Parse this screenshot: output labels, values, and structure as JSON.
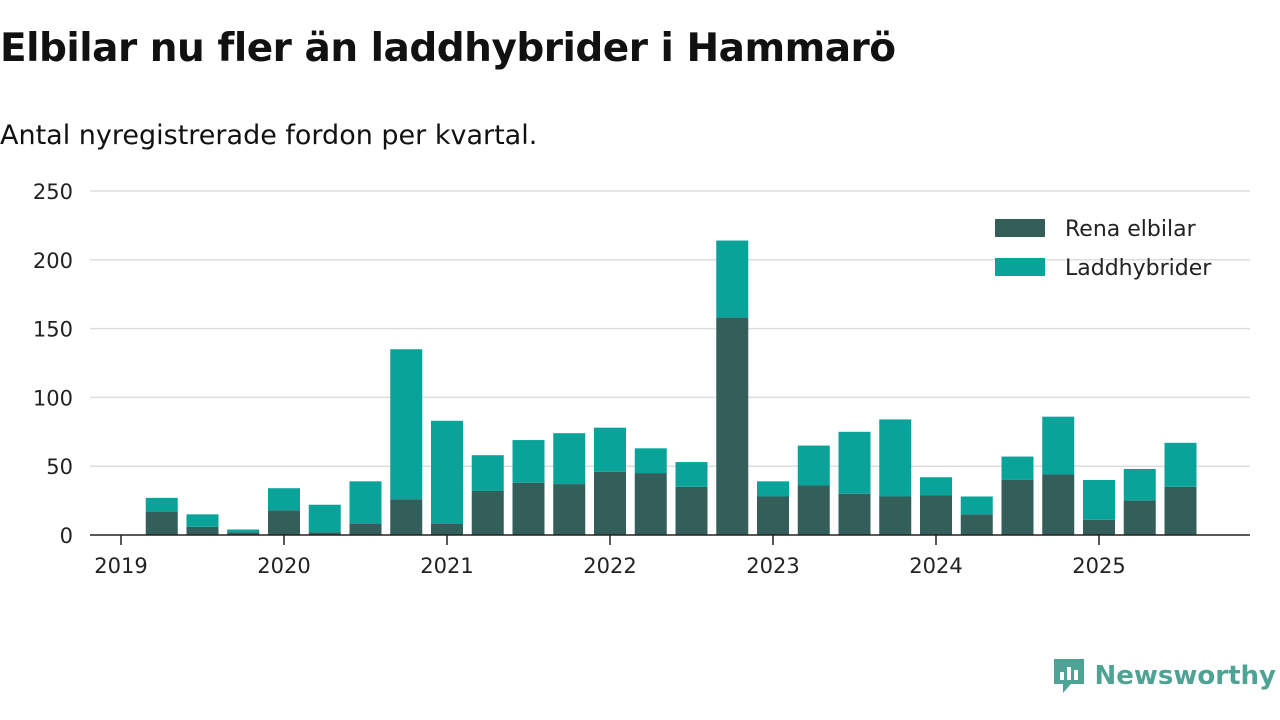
{
  "header": {
    "title": "Elbilar nu fler än laddhybrider i Hammarö",
    "subtitle": "Antal nyregistrerade fordon per kvartal."
  },
  "brand": {
    "name": "Newsworthy"
  },
  "colors": {
    "elbilar": "#335e5a",
    "laddhybrider": "#0aa39a",
    "grid": "#dddddd",
    "axis": "#222222"
  },
  "chart_data": {
    "type": "bar",
    "stacked": true,
    "x_ticks": [
      "2019",
      "2020",
      "2021",
      "2022",
      "2023",
      "2024",
      "2025"
    ],
    "ylim": [
      0,
      250
    ],
    "y_ticks": [
      0,
      50,
      100,
      150,
      200,
      250
    ],
    "legend_position": "top-right",
    "grid": true,
    "categories": [
      "2019 Q2",
      "2019 Q3",
      "2019 Q4",
      "2020 Q1",
      "2020 Q2",
      "2020 Q3",
      "2020 Q4",
      "2021 Q1",
      "2021 Q2",
      "2021 Q3",
      "2021 Q4",
      "2022 Q1",
      "2022 Q2",
      "2022 Q3",
      "2022 Q4",
      "2023 Q1",
      "2023 Q2",
      "2023 Q3",
      "2023 Q4",
      "2024 Q1",
      "2024 Q2",
      "2024 Q3",
      "2024 Q4",
      "2025 Q1",
      "2025 Q2",
      "2025 Q3"
    ],
    "series": [
      {
        "name": "Rena elbilar",
        "values": [
          17,
          6,
          2,
          18,
          2,
          8,
          26,
          8,
          32,
          38,
          37,
          46,
          45,
          35,
          158,
          28,
          36,
          30,
          28,
          29,
          15,
          40,
          44,
          11,
          25,
          35
        ]
      },
      {
        "name": "Laddhybrider",
        "values": [
          10,
          9,
          2,
          16,
          20,
          31,
          109,
          75,
          26,
          31,
          37,
          32,
          18,
          18,
          56,
          11,
          29,
          45,
          56,
          13,
          13,
          17,
          42,
          29,
          23,
          32
        ]
      }
    ]
  }
}
